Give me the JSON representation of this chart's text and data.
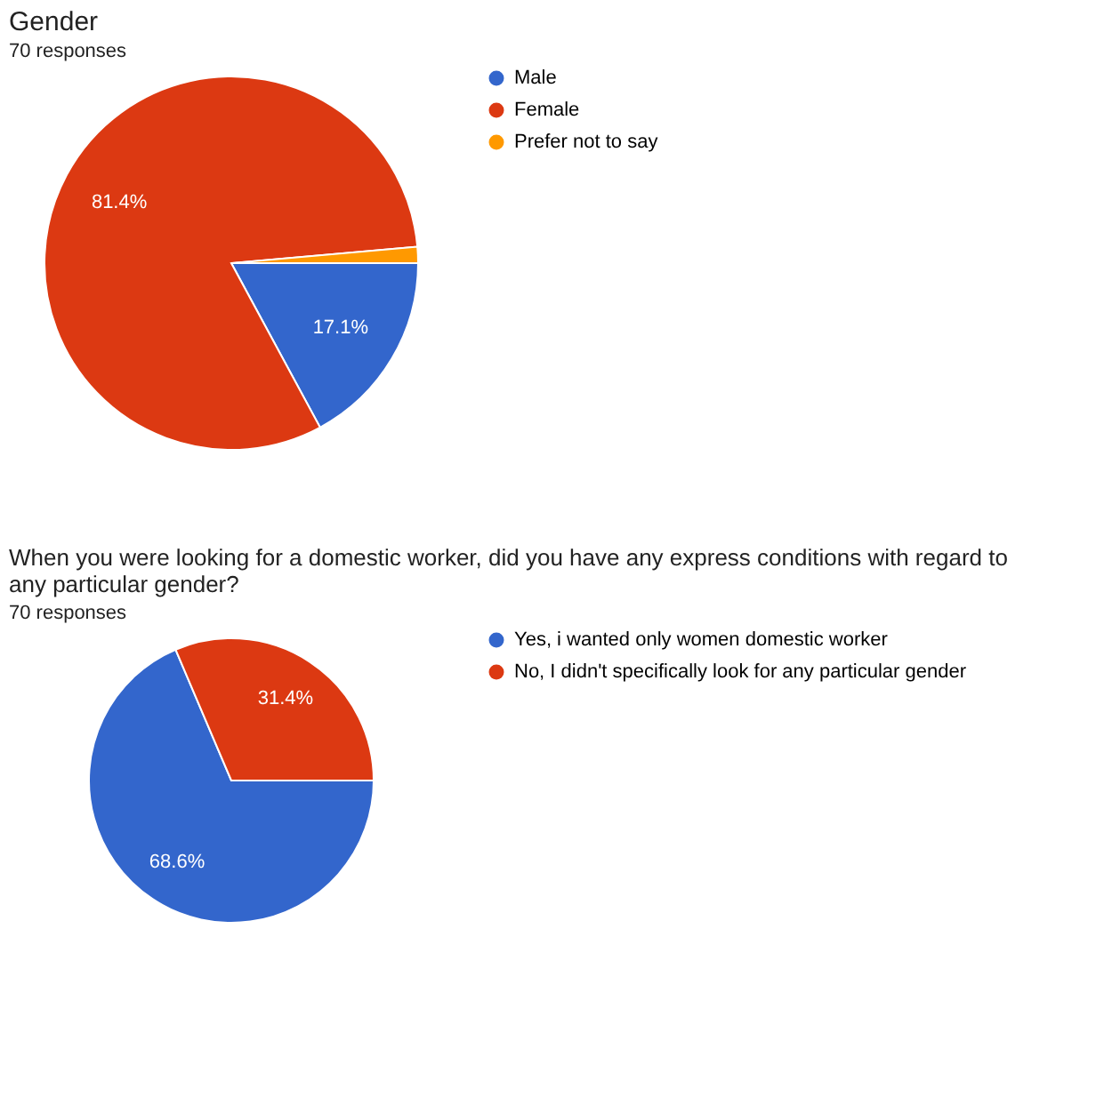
{
  "chart_data": [
    {
      "type": "pie",
      "title": "Gender",
      "subtitle": "70 responses",
      "categories": [
        "Male",
        "Female",
        "Prefer not to say"
      ],
      "values": [
        17.1,
        81.4,
        1.4
      ],
      "colors": [
        "#3366cc",
        "#dc3912",
        "#ff9900"
      ],
      "value_labels": [
        "17.1%",
        "81.4%",
        null
      ],
      "legend": "right"
    },
    {
      "type": "pie",
      "title": "When you were looking for a domestic worker, did you have any express conditions with regard to any particular gender?",
      "subtitle": "70 responses",
      "categories": [
        "Yes, i wanted only women domestic worker",
        "No, I didn't specifically look for any particular gender"
      ],
      "values": [
        68.6,
        31.4
      ],
      "colors": [
        "#3366cc",
        "#dc3912"
      ],
      "value_labels": [
        "68.6%",
        "31.4%"
      ],
      "legend": "right"
    }
  ]
}
